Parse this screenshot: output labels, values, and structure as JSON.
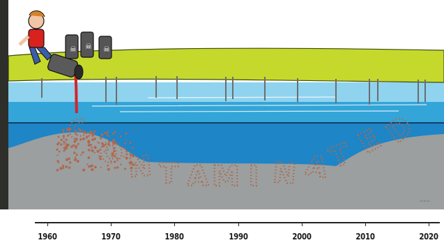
{
  "illustration": {
    "word": "CONTAMINATED",
    "barrels": 3,
    "colors": {
      "grass": "#c5d92c",
      "water_top": "#8fd3ee",
      "water_mid": "#33a5d8",
      "water_deep": "#1e85c6",
      "sediment": "#9b9f9f",
      "spill": "#d6232a",
      "dots": "#b06850",
      "shirt": "#d9211e",
      "pants": "#3b5ea8",
      "barrel": "#4a4a4a",
      "frame": "#3b3b38"
    },
    "icons": [
      "person-figure",
      "barrel-icon",
      "spill-stream",
      "well-pipe"
    ]
  },
  "timeline": {
    "years": [
      "1960",
      "1970",
      "1980",
      "1990",
      "2000",
      "2010",
      "2020"
    ]
  }
}
